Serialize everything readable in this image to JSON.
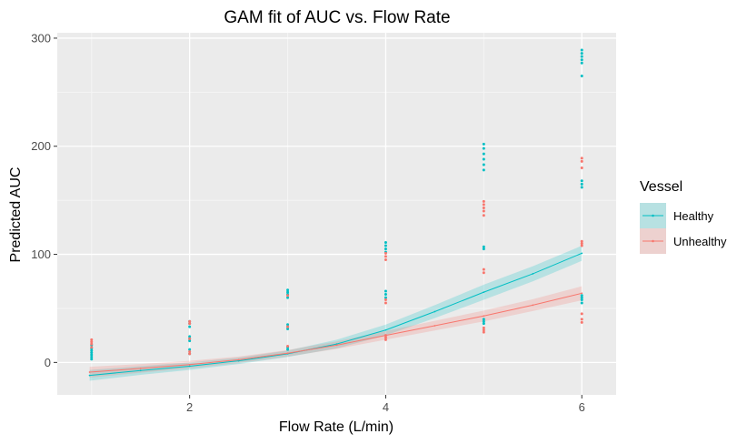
{
  "chart_data": {
    "type": "scatter",
    "title": "GAM fit of AUC vs. Flow Rate",
    "xlabel": "Flow Rate (L/min)",
    "ylabel": "Predicted AUC",
    "xlim": [
      0.65,
      6.35
    ],
    "ylim": [
      -30,
      305
    ],
    "x_ticks": [
      2,
      4,
      6
    ],
    "y_ticks": [
      0,
      100,
      200,
      300
    ],
    "grid": true,
    "legend": {
      "title": "Vessel",
      "placement": "right"
    },
    "series": [
      {
        "name": "Healthy",
        "color": "#00BFC4",
        "points": [
          [
            1,
            3
          ],
          [
            1,
            5
          ],
          [
            1,
            7
          ],
          [
            1,
            9
          ],
          [
            1,
            11
          ],
          [
            1,
            13
          ],
          [
            1,
            16
          ],
          [
            2,
            8
          ],
          [
            2,
            12
          ],
          [
            2,
            20
          ],
          [
            2,
            22
          ],
          [
            2,
            24
          ],
          [
            2,
            33
          ],
          [
            2,
            36
          ],
          [
            2,
            38
          ],
          [
            3,
            12
          ],
          [
            3,
            14
          ],
          [
            3,
            31
          ],
          [
            3,
            33
          ],
          [
            3,
            35
          ],
          [
            3,
            60
          ],
          [
            3,
            63
          ],
          [
            3,
            65
          ],
          [
            3,
            67
          ],
          [
            4,
            60
          ],
          [
            4,
            63
          ],
          [
            4,
            66
          ],
          [
            4,
            102
          ],
          [
            4,
            105
          ],
          [
            4,
            108
          ],
          [
            4,
            111
          ],
          [
            5,
            36
          ],
          [
            5,
            38
          ],
          [
            5,
            40
          ],
          [
            5,
            105
          ],
          [
            5,
            107
          ],
          [
            5,
            178
          ],
          [
            5,
            183
          ],
          [
            5,
            188
          ],
          [
            5,
            193
          ],
          [
            5,
            198
          ],
          [
            5,
            202
          ],
          [
            6,
            55
          ],
          [
            6,
            58
          ],
          [
            6,
            60
          ],
          [
            6,
            62
          ],
          [
            6,
            162
          ],
          [
            6,
            165
          ],
          [
            6,
            168
          ],
          [
            6,
            265
          ],
          [
            6,
            277
          ],
          [
            6,
            280
          ],
          [
            6,
            283
          ],
          [
            6,
            286
          ],
          [
            6,
            289
          ]
        ],
        "fit_x": [
          0.98,
          1.5,
          2,
          2.5,
          3,
          3.5,
          4,
          4.5,
          5,
          5.5,
          6
        ],
        "fit_y": [
          -12,
          -7.5,
          -3.5,
          1.5,
          8,
          17,
          30,
          47,
          65,
          82,
          101
        ],
        "fit_band": [
          5,
          4,
          3.5,
          3,
          3,
          4,
          5,
          6,
          7,
          7,
          7
        ]
      },
      {
        "name": "Unhealthy",
        "color": "#F8766D",
        "points": [
          [
            1,
            14
          ],
          [
            1,
            17
          ],
          [
            1,
            19
          ],
          [
            1,
            21
          ],
          [
            2,
            8
          ],
          [
            2,
            10
          ],
          [
            2,
            22
          ],
          [
            2,
            36
          ],
          [
            2,
            38
          ],
          [
            3,
            15
          ],
          [
            3,
            33
          ],
          [
            3,
            62
          ],
          [
            4,
            21
          ],
          [
            4,
            23
          ],
          [
            4,
            25
          ],
          [
            4,
            55
          ],
          [
            4,
            58
          ],
          [
            4,
            95
          ],
          [
            4,
            98
          ],
          [
            4,
            101
          ],
          [
            5,
            28
          ],
          [
            5,
            30
          ],
          [
            5,
            32
          ],
          [
            5,
            83
          ],
          [
            5,
            86
          ],
          [
            5,
            136
          ],
          [
            5,
            140
          ],
          [
            5,
            143
          ],
          [
            5,
            146
          ],
          [
            5,
            149
          ],
          [
            6,
            37
          ],
          [
            6,
            40
          ],
          [
            6,
            45
          ],
          [
            6,
            108
          ],
          [
            6,
            110
          ],
          [
            6,
            112
          ],
          [
            6,
            180
          ],
          [
            6,
            186
          ],
          [
            6,
            189
          ]
        ],
        "fit_x": [
          0.98,
          1.5,
          2,
          2.5,
          3,
          3.5,
          4,
          4.5,
          5,
          5.5,
          6
        ],
        "fit_y": [
          -9,
          -5.5,
          -2,
          2.5,
          8.5,
          16,
          25,
          34,
          43,
          53,
          64
        ],
        "fit_band": [
          5,
          4,
          3.5,
          3,
          3,
          3.5,
          4,
          4.5,
          5,
          5.5,
          6.5
        ]
      }
    ]
  }
}
